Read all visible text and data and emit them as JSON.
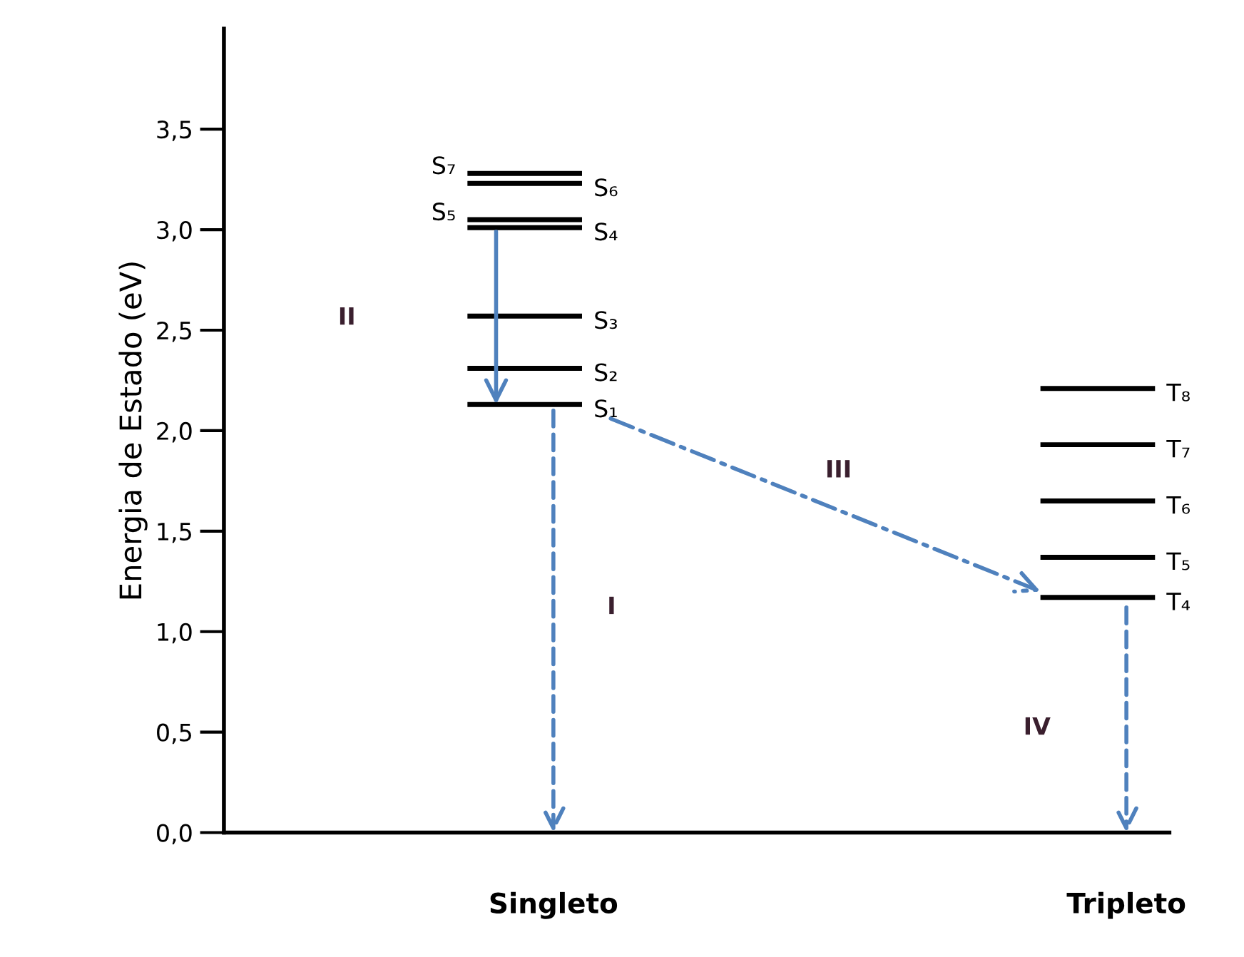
{
  "chart_data": {
    "type": "line",
    "ylabel": "Energia de Estado (eV)",
    "categories": [
      null,
      null,
      null,
      null,
      null,
      null,
      null,
      null,
      null,
      null,
      null,
      "Singleto",
      null,
      null,
      null,
      null,
      null,
      null,
      null,
      null,
      null,
      null,
      null,
      null,
      null,
      null,
      null,
      null,
      null,
      null,
      null,
      "Tripleto",
      null
    ],
    "ylim": [
      0,
      4.0
    ],
    "yticks": [
      {
        "value": 0,
        "label": "0,0"
      },
      {
        "value": 0.5,
        "label": "0,5"
      },
      {
        "value": 1.0,
        "label": "1,0"
      },
      {
        "value": 1.5,
        "label": "1,5"
      },
      {
        "value": 2.0,
        "label": "2,0"
      },
      {
        "value": 2.5,
        "label": "2,5"
      },
      {
        "value": 3.0,
        "label": "3,0"
      },
      {
        "value": 3.5,
        "label": "3,5"
      }
    ],
    "grid": false,
    "series": [
      {
        "name": "S₁",
        "color": "#000000",
        "values": [
          null,
          null,
          null,
          null,
          null,
          null,
          null,
          null,
          2.13,
          2.13,
          2.13,
          2.13,
          2.13,
          null,
          null,
          null,
          null,
          null,
          null,
          null,
          null,
          null,
          null,
          null,
          null,
          null,
          null,
          null,
          null,
          null,
          null,
          null,
          null
        ]
      },
      {
        "name": "S₂",
        "color": "#000000",
        "values": [
          null,
          null,
          null,
          null,
          null,
          null,
          null,
          null,
          2.31,
          2.31,
          2.31,
          2.31,
          2.31,
          null,
          null,
          null,
          null,
          null,
          null,
          null,
          null,
          null,
          null,
          null,
          null,
          null,
          null,
          null,
          null,
          null,
          null,
          null,
          null
        ]
      },
      {
        "name": "S₃",
        "color": "#000000",
        "values": [
          null,
          null,
          null,
          null,
          null,
          null,
          null,
          null,
          2.57,
          2.57,
          2.57,
          2.57,
          2.57,
          null,
          null,
          null,
          null,
          null,
          null,
          null,
          null,
          null,
          null,
          null,
          null,
          null,
          null,
          null,
          null,
          null,
          null,
          null,
          null
        ]
      },
      {
        "name": "S₄",
        "color": "#000000",
        "values": [
          null,
          null,
          null,
          null,
          null,
          null,
          null,
          null,
          3.01,
          3.01,
          3.01,
          3.01,
          3.01,
          null,
          null,
          null,
          null,
          null,
          null,
          null,
          null,
          null,
          null,
          null,
          null,
          null,
          null,
          null,
          null,
          null,
          null,
          null,
          null
        ]
      },
      {
        "name": "S₅",
        "color": "#000000",
        "values": [
          null,
          null,
          null,
          null,
          null,
          null,
          null,
          null,
          3.05,
          3.05,
          3.05,
          3.05,
          3.05,
          null,
          null,
          null,
          null,
          null,
          null,
          null,
          null,
          null,
          null,
          null,
          null,
          null,
          null,
          null,
          null,
          null,
          null,
          null,
          null
        ]
      },
      {
        "name": "S₆",
        "color": "#000000",
        "values": [
          null,
          null,
          null,
          null,
          null,
          null,
          null,
          null,
          3.23,
          3.23,
          3.23,
          3.23,
          3.23,
          null,
          null,
          null,
          null,
          null,
          null,
          null,
          null,
          null,
          null,
          null,
          null,
          null,
          null,
          null,
          null,
          null,
          null,
          null,
          null
        ]
      },
      {
        "name": "S₇",
        "color": "#000000",
        "values": [
          null,
          null,
          null,
          null,
          null,
          null,
          null,
          null,
          3.28,
          3.28,
          3.28,
          3.28,
          3.28,
          null,
          null,
          null,
          null,
          null,
          null,
          null,
          null,
          null,
          null,
          null,
          null,
          null,
          null,
          null,
          null,
          null,
          null,
          null,
          null
        ]
      },
      {
        "name": "T₄",
        "color": "#000000",
        "values": [
          null,
          null,
          null,
          null,
          null,
          null,
          null,
          null,
          null,
          null,
          null,
          null,
          null,
          null,
          null,
          null,
          null,
          null,
          null,
          null,
          null,
          null,
          null,
          null,
          null,
          null,
          null,
          null,
          1.17,
          1.17,
          1.17,
          1.17,
          1.17
        ]
      },
      {
        "name": "T₅",
        "color": "#000000",
        "values": [
          null,
          null,
          null,
          null,
          null,
          null,
          null,
          null,
          null,
          null,
          null,
          null,
          null,
          null,
          null,
          null,
          null,
          null,
          null,
          null,
          null,
          null,
          null,
          null,
          null,
          null,
          null,
          null,
          1.37,
          1.37,
          1.37,
          1.37,
          1.37
        ]
      },
      {
        "name": "T₆",
        "color": "#000000",
        "values": [
          null,
          null,
          null,
          null,
          null,
          null,
          null,
          null,
          null,
          null,
          null,
          null,
          null,
          null,
          null,
          null,
          null,
          null,
          null,
          null,
          null,
          null,
          null,
          null,
          null,
          null,
          null,
          null,
          1.65,
          1.65,
          1.65,
          1.65,
          1.65
        ]
      },
      {
        "name": "T₇",
        "color": "#000000",
        "values": [
          null,
          null,
          null,
          null,
          null,
          null,
          null,
          null,
          null,
          null,
          null,
          null,
          null,
          null,
          null,
          null,
          null,
          null,
          null,
          null,
          null,
          null,
          null,
          null,
          null,
          null,
          null,
          null,
          1.93,
          1.93,
          1.93,
          1.93,
          1.93
        ]
      },
      {
        "name": "T₈",
        "color": "#000000",
        "values": [
          null,
          null,
          null,
          null,
          null,
          null,
          null,
          null,
          null,
          null,
          null,
          null,
          null,
          null,
          null,
          null,
          null,
          null,
          null,
          null,
          null,
          null,
          null,
          null,
          null,
          null,
          null,
          null,
          2.21,
          2.21,
          2.21,
          2.21,
          2.21
        ]
      }
    ],
    "annotations": [
      "II",
      "I",
      "III",
      "IV"
    ]
  }
}
